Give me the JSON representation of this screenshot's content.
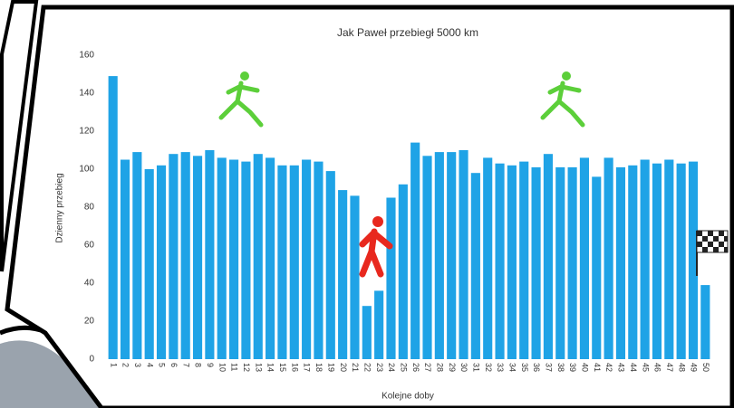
{
  "chart_data": {
    "type": "bar",
    "title": "Jak Paweł przebiegł 5000 km",
    "x_label": "Kolejne doby",
    "y_label": "Dzienny przebieg",
    "categories": [
      "1",
      "2",
      "3",
      "4",
      "5",
      "6",
      "7",
      "8",
      "9",
      "10",
      "11",
      "12",
      "13",
      "14",
      "15",
      "16",
      "17",
      "18",
      "19",
      "20",
      "21",
      "22",
      "23",
      "24",
      "25",
      "26",
      "27",
      "28",
      "29",
      "30",
      "31",
      "32",
      "33",
      "34",
      "35",
      "36",
      "37",
      "38",
      "39",
      "40",
      "41",
      "42",
      "43",
      "44",
      "45",
      "46",
      "47",
      "48",
      "49",
      "50"
    ],
    "values": [
      149,
      105,
      109,
      100,
      102,
      108,
      109,
      107,
      110,
      106,
      105,
      104,
      108,
      106,
      102,
      102,
      105,
      104,
      99,
      89,
      86,
      28,
      36,
      85,
      92,
      114,
      107,
      109,
      109,
      110,
      98,
      106,
      103,
      102,
      104,
      101,
      108,
      101,
      101,
      106,
      96,
      106,
      101,
      102,
      105,
      103,
      105,
      103,
      104,
      39
    ],
    "color": "#1fa3e6",
    "ylim": [
      0,
      160
    ],
    "yticks": [
      0,
      20,
      40,
      60,
      80,
      100,
      120,
      140,
      160
    ],
    "grid": false
  }
}
